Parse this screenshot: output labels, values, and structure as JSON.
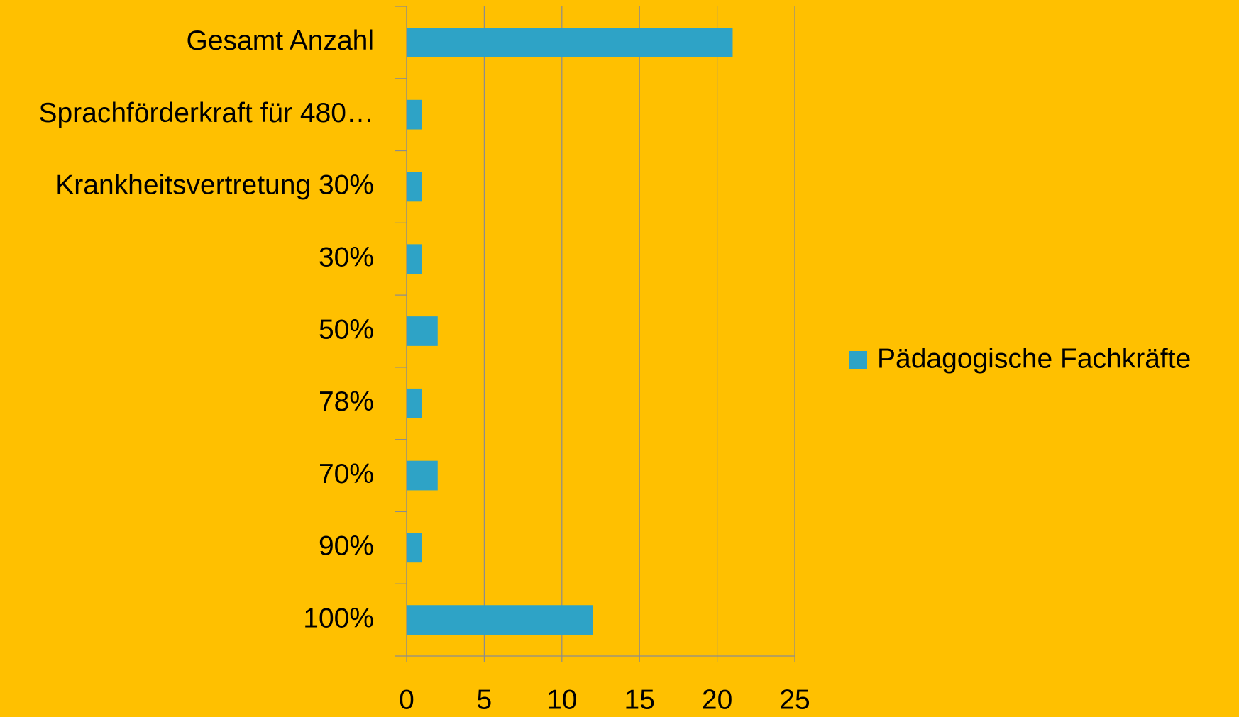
{
  "chart_data": {
    "type": "bar",
    "orientation": "horizontal",
    "categories": [
      "Gesamt Anzahl",
      "Sprachförderkraft für 480…",
      "Krankheitsvertretung 30%",
      "30%",
      "50%",
      "78%",
      "70%",
      "90%",
      "100%"
    ],
    "series": [
      {
        "name": "Pädagogische Fachkräfte",
        "color": "#2ea3c6",
        "values": [
          21,
          1,
          1,
          1,
          2,
          1,
          2,
          1,
          12
        ]
      }
    ],
    "xlim": [
      0,
      25
    ],
    "xticks": [
      0,
      5,
      10,
      15,
      20,
      25
    ],
    "grid": true,
    "legend": "right",
    "background": "#ffc000"
  }
}
